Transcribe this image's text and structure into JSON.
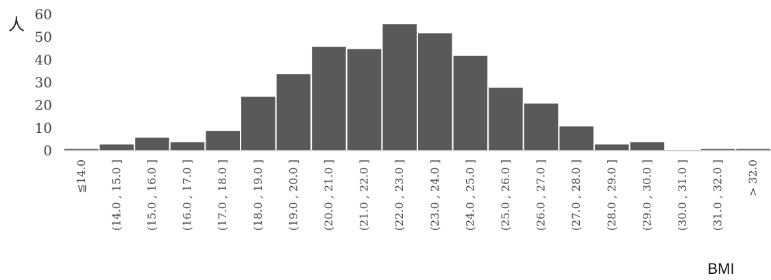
{
  "chart_data": {
    "type": "bar",
    "title": "",
    "xlabel": "BMI",
    "ylabel": "人",
    "ylim": [
      0,
      60
    ],
    "yticks": [
      "0",
      "10",
      "20",
      "30",
      "40",
      "50",
      "60"
    ],
    "categories": [
      "≦14.0",
      "(14.0 , 15.0 ]",
      "(15.0 , 16.0 ]",
      "(16.0 , 17.0 ]",
      "(17.0 , 18.0 ]",
      "(18.0 , 19.0 ]",
      "(19.0 , 20.0 ]",
      "(20.0 , 21.0 ]",
      "(21.0 , 22.0 ]",
      "(22.0 , 23.0 ]",
      "(23.0 , 24.0 ]",
      "(24.0 , 25.0 ]",
      "(25.0 , 26.0 ]",
      "(26.0 , 27.0 ]",
      "(27.0 , 28.0 ]",
      "(28.0 , 29.0 ]",
      "(29.0 , 30.0 ]",
      "(30.0 , 31.0 ]",
      "(31.0 , 32.0 ]",
      "> 32.0"
    ],
    "values": [
      1,
      3,
      6,
      4,
      9,
      24,
      34,
      46,
      45,
      56,
      52,
      42,
      28,
      21,
      11,
      3,
      4,
      0,
      1,
      1
    ],
    "grid": false,
    "legend": "none",
    "colors": {
      "bar": "#595959",
      "bar_edge": "#ffffff"
    }
  }
}
